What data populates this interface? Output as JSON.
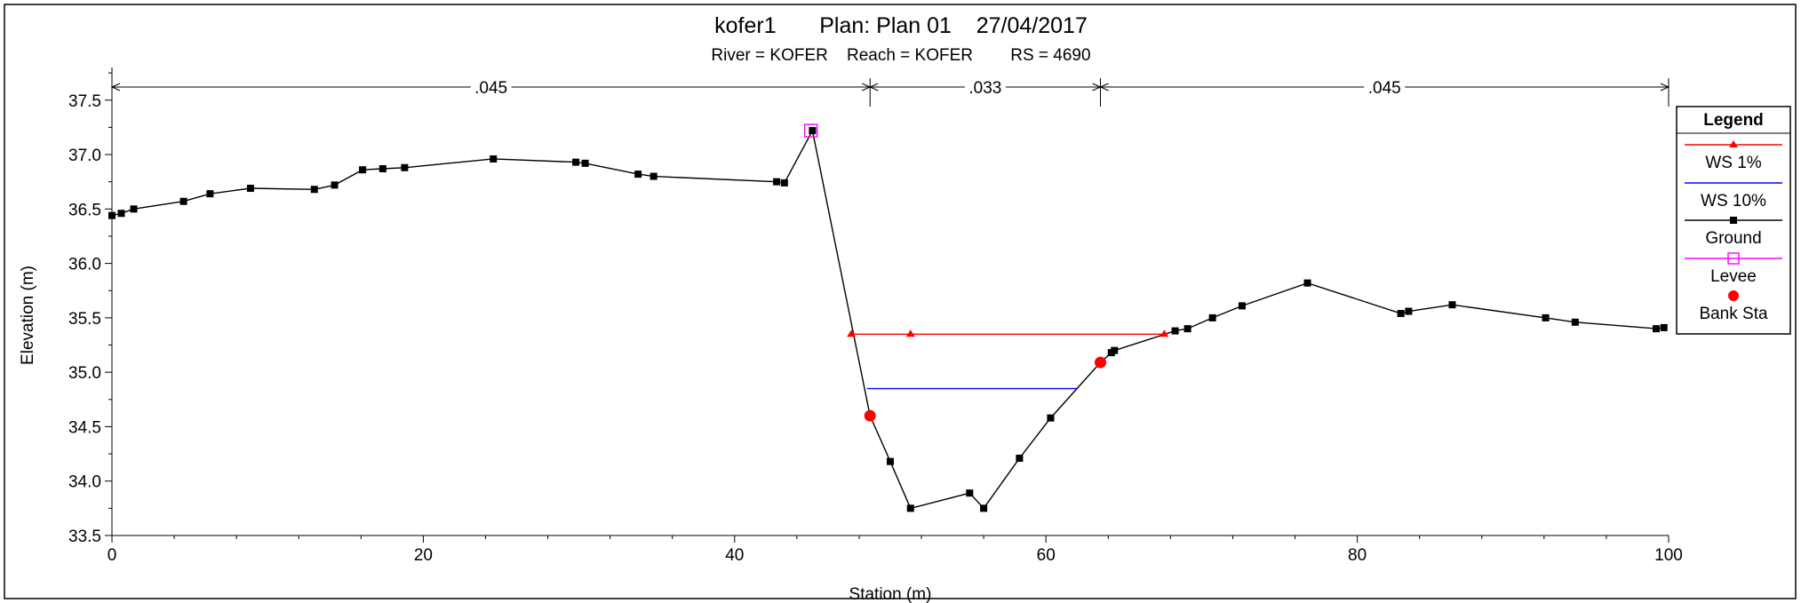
{
  "chart_data": {
    "type": "line",
    "title": "kofer1       Plan: Plan 01    27/04/2017",
    "subtitle": "River = KOFER    Reach = KOFER        RS = 4690",
    "xlabel": "Station (m)",
    "ylabel": "Elevation (m)",
    "xlim": [
      0,
      100
    ],
    "ylim": [
      33.5,
      37.8
    ],
    "x_ticks": [
      "0",
      "20",
      "40",
      "60",
      "80",
      "100"
    ],
    "y_ticks": [
      "33.5",
      "34.0",
      "34.5",
      "35.0",
      "35.5",
      "36.0",
      "36.5",
      "37.0",
      "37.5"
    ],
    "grid": false,
    "legend_position": "right",
    "legend_title": "Legend",
    "manning": [
      {
        "label": ".045",
        "x_start": 0,
        "x_end": 48.7
      },
      {
        "label": ".033",
        "x_start": 48.7,
        "x_end": 63.5
      },
      {
        "label": ".045",
        "x_start": 63.5,
        "x_end": 100
      }
    ],
    "colors": {
      "ws1": "#ff0000",
      "ws10": "#0000ff",
      "ground": "#000000",
      "levee": "#ff00ff",
      "bank": "#ff0000"
    },
    "series": [
      {
        "name": "WS 1%",
        "elevation": 35.35,
        "x": [
          47.5,
          51.3,
          67.6
        ]
      },
      {
        "name": "WS 10%",
        "elevation": 34.85,
        "x": [
          48.5,
          62.0
        ]
      },
      {
        "name": "Ground",
        "x": [
          0.0,
          0.6,
          1.4,
          4.6,
          6.3,
          8.9,
          13.0,
          14.3,
          16.1,
          17.4,
          18.8,
          24.5,
          29.8,
          30.4,
          33.8,
          34.8,
          42.7,
          43.2,
          45.0,
          48.7,
          50.0,
          51.3,
          55.1,
          56.0,
          58.3,
          60.3,
          63.5,
          64.2,
          64.4,
          68.3,
          69.1,
          70.7,
          72.6,
          76.8,
          82.8,
          83.3,
          86.1,
          92.1,
          94.0,
          99.2,
          99.7
        ],
        "values": [
          36.44,
          36.46,
          36.5,
          36.57,
          36.64,
          36.69,
          36.68,
          36.72,
          36.86,
          36.87,
          36.88,
          36.96,
          36.93,
          36.92,
          36.82,
          36.8,
          36.75,
          36.74,
          37.22,
          34.6,
          34.18,
          33.75,
          33.89,
          33.75,
          34.21,
          34.58,
          35.09,
          35.18,
          35.2,
          35.38,
          35.4,
          35.5,
          35.61,
          35.82,
          35.54,
          35.56,
          35.62,
          35.5,
          35.46,
          35.4,
          35.41
        ]
      },
      {
        "name": "Levee",
        "x": [
          44.9
        ],
        "values": [
          37.22
        ]
      },
      {
        "name": "Bank Sta",
        "x": [
          48.7,
          63.5
        ],
        "values": [
          34.6,
          35.09
        ]
      }
    ]
  }
}
